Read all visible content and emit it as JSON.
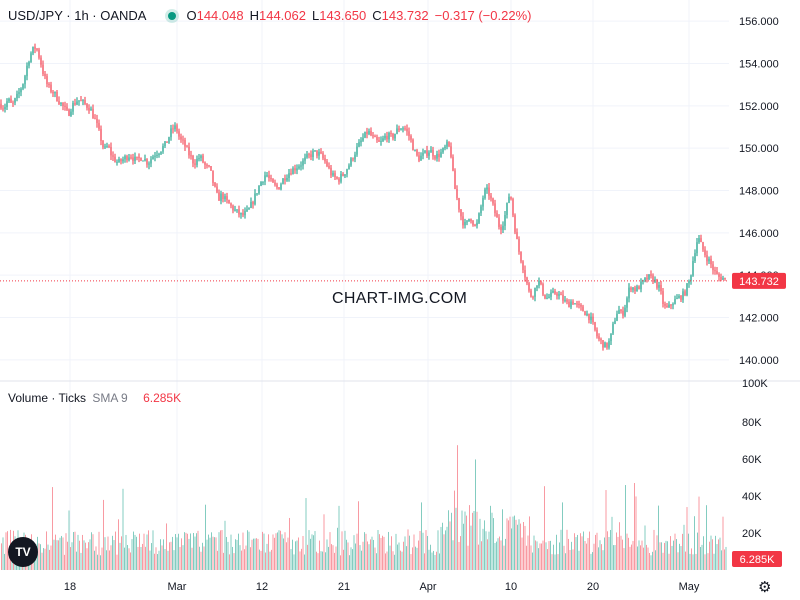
{
  "legend": {
    "symbol": "USD/JPY · 1h · OANDA",
    "open_key": "O",
    "open": "144.048",
    "high_key": "H",
    "high": "144.062",
    "low_key": "L",
    "low": "143.650",
    "close_key": "C",
    "close": "143.732",
    "change": "−0.317 (−0.22%)"
  },
  "volume_legend": {
    "title": "Volume · Ticks",
    "sma": "SMA 9",
    "value": "6.285K"
  },
  "watermark": "CHART-IMG.COM",
  "logo": "TV",
  "icons": {
    "settings": "gear-icon",
    "logo": "tradingview-logo-icon"
  },
  "colors": {
    "up": "#089981",
    "down": "#f23645",
    "last_price_line": "#f23645"
  },
  "chart_data": {
    "type": "candlestick",
    "interval": "1h",
    "price_axis": {
      "ylim": [
        139.0,
        157.0
      ],
      "ticks": [
        "140.000",
        "142.000",
        "144.000",
        "146.000",
        "148.000",
        "150.000",
        "152.000",
        "154.000",
        "156.000"
      ],
      "tick_values": [
        140,
        142,
        144,
        146,
        148,
        150,
        152,
        154,
        156
      ],
      "last_price_label": "143.732",
      "last_price": 143.732
    },
    "time_axis": {
      "ticks": [
        "18",
        "Mar",
        "12",
        "21",
        "Apr",
        "10",
        "20",
        "May"
      ]
    },
    "price_path": [
      [
        0,
        152.1
      ],
      [
        4,
        151.9
      ],
      [
        8,
        152.3
      ],
      [
        12,
        152.0
      ],
      [
        18,
        152.5
      ],
      [
        24,
        153.2
      ],
      [
        28,
        154.1
      ],
      [
        32,
        154.6
      ],
      [
        36,
        154.8
      ],
      [
        40,
        154.2
      ],
      [
        44,
        153.4
      ],
      [
        48,
        152.9
      ],
      [
        54,
        152.6
      ],
      [
        58,
        152.3
      ],
      [
        64,
        151.9
      ],
      [
        68,
        151.6
      ],
      [
        72,
        152.0
      ],
      [
        78,
        152.3
      ],
      [
        84,
        152.1
      ],
      [
        90,
        151.9
      ],
      [
        96,
        151.2
      ],
      [
        100,
        150.6
      ],
      [
        104,
        149.9
      ],
      [
        108,
        150.1
      ],
      [
        112,
        149.6
      ],
      [
        118,
        149.3
      ],
      [
        124,
        149.5
      ],
      [
        130,
        149.7
      ],
      [
        136,
        149.4
      ],
      [
        142,
        149.6
      ],
      [
        148,
        149.3
      ],
      [
        154,
        149.7
      ],
      [
        160,
        149.9
      ],
      [
        166,
        150.2
      ],
      [
        172,
        150.9
      ],
      [
        176,
        151.0
      ],
      [
        180,
        150.4
      ],
      [
        184,
        150.2
      ],
      [
        188,
        149.8
      ],
      [
        194,
        149.3
      ],
      [
        200,
        149.6
      ],
      [
        206,
        149.1
      ],
      [
        210,
        149.0
      ],
      [
        214,
        148.2
      ],
      [
        218,
        147.6
      ],
      [
        222,
        147.8
      ],
      [
        226,
        147.5
      ],
      [
        230,
        147.3
      ],
      [
        236,
        147.0
      ],
      [
        242,
        146.8
      ],
      [
        248,
        147.0
      ],
      [
        254,
        147.6
      ],
      [
        258,
        148.1
      ],
      [
        262,
        148.5
      ],
      [
        266,
        148.8
      ],
      [
        272,
        148.3
      ],
      [
        278,
        148.1
      ],
      [
        284,
        148.6
      ],
      [
        290,
        148.9
      ],
      [
        296,
        149.1
      ],
      [
        302,
        149.3
      ],
      [
        308,
        149.6
      ],
      [
        314,
        149.8
      ],
      [
        320,
        149.7
      ],
      [
        326,
        149.3
      ],
      [
        332,
        148.7
      ],
      [
        338,
        148.5
      ],
      [
        344,
        148.8
      ],
      [
        350,
        149.3
      ],
      [
        356,
        149.9
      ],
      [
        362,
        150.4
      ],
      [
        368,
        150.8
      ],
      [
        374,
        150.4
      ],
      [
        380,
        150.2
      ],
      [
        386,
        150.6
      ],
      [
        392,
        150.5
      ],
      [
        398,
        150.9
      ],
      [
        404,
        151.0
      ],
      [
        410,
        150.5
      ],
      [
        414,
        149.9
      ],
      [
        418,
        149.5
      ],
      [
        424,
        149.7
      ],
      [
        430,
        149.9
      ],
      [
        436,
        149.6
      ],
      [
        442,
        149.8
      ],
      [
        448,
        150.2
      ],
      [
        451,
        149.7
      ],
      [
        454,
        148.3
      ],
      [
        458,
        147.4
      ],
      [
        462,
        146.6
      ],
      [
        466,
        146.3
      ],
      [
        470,
        146.8
      ],
      [
        476,
        146.2
      ],
      [
        480,
        147.0
      ],
      [
        484,
        147.9
      ],
      [
        488,
        148.0
      ],
      [
        492,
        147.4
      ],
      [
        496,
        146.8
      ],
      [
        500,
        146.2
      ],
      [
        504,
        146.6
      ],
      [
        508,
        147.5
      ],
      [
        510,
        148.0
      ],
      [
        514,
        146.5
      ],
      [
        518,
        145.3
      ],
      [
        522,
        144.6
      ],
      [
        526,
        143.8
      ],
      [
        530,
        143.0
      ],
      [
        534,
        143.2
      ],
      [
        538,
        143.8
      ],
      [
        542,
        143.3
      ],
      [
        546,
        142.9
      ],
      [
        550,
        143.0
      ],
      [
        556,
        143.2
      ],
      [
        562,
        142.9
      ],
      [
        568,
        142.6
      ],
      [
        572,
        142.8
      ],
      [
        578,
        142.5
      ],
      [
        584,
        142.3
      ],
      [
        590,
        142.0
      ],
      [
        594,
        141.5
      ],
      [
        598,
        141.0
      ],
      [
        602,
        140.8
      ],
      [
        606,
        140.6
      ],
      [
        610,
        140.9
      ],
      [
        614,
        141.8
      ],
      [
        618,
        142.4
      ],
      [
        622,
        142.1
      ],
      [
        626,
        142.7
      ],
      [
        630,
        143.5
      ],
      [
        636,
        143.3
      ],
      [
        642,
        143.6
      ],
      [
        648,
        143.9
      ],
      [
        654,
        143.8
      ],
      [
        660,
        143.3
      ],
      [
        664,
        142.5
      ],
      [
        668,
        142.4
      ],
      [
        672,
        142.7
      ],
      [
        678,
        142.9
      ],
      [
        684,
        143.1
      ],
      [
        690,
        143.8
      ],
      [
        694,
        145.0
      ],
      [
        698,
        145.8
      ],
      [
        702,
        145.3
      ],
      [
        706,
        144.9
      ],
      [
        710,
        144.6
      ],
      [
        714,
        144.2
      ],
      [
        718,
        143.9
      ],
      [
        722,
        143.9
      ],
      [
        726,
        143.73
      ]
    ]
  }
}
